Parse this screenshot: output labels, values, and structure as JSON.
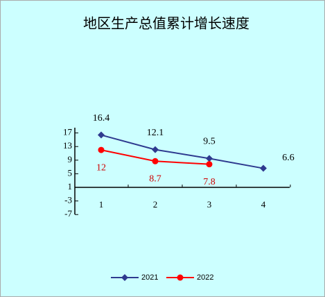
{
  "chart_data": {
    "type": "line",
    "title": "地区生产总值累计增长速度",
    "categories": [
      "1",
      "2",
      "3",
      "4"
    ],
    "series": [
      {
        "name": "2021",
        "color": "#2e3a8f",
        "values": [
          16.4,
          12.1,
          9.5,
          6.6
        ]
      },
      {
        "name": "2022",
        "color": "#ff0000",
        "values": [
          12,
          8.7,
          7.8,
          null
        ]
      }
    ],
    "ylim": [
      -7,
      17
    ],
    "yticks": [
      17,
      13,
      9,
      5,
      1,
      -3,
      -7
    ]
  }
}
